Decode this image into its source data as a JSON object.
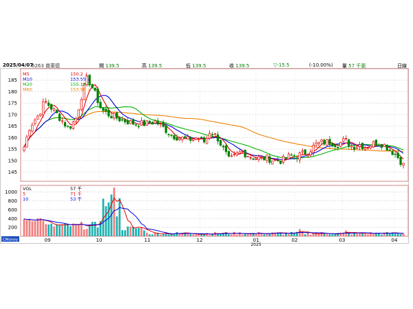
{
  "header": {
    "date": "2025/04/07",
    "code": "6263 普萊德",
    "open_label": "開",
    "open_value": "139.5",
    "high_label": "高",
    "high_value": "139.5",
    "low_label": "低",
    "low_value": "139.5",
    "close_label": "收",
    "close_value": "139.5",
    "change": "▽-15.5",
    "change_pct": "(-10.00%)",
    "volume_label": "量",
    "volume_value": "57 千張",
    "period": "日線"
  },
  "colors": {
    "up": "#e00000",
    "down": "#008000",
    "ma5": "#e00000",
    "ma10": "#0000e0",
    "ma20": "#00b000",
    "ma60": "#f08000",
    "volume_up": "#f08080",
    "volume_down": "#20b0b0",
    "frame": "#d08080"
  },
  "legend_price": [
    {
      "name": "M5",
      "value": "150.2 ↓",
      "color": "#e00000"
    },
    {
      "name": "M10",
      "value": "153.55 ↓",
      "color": "#0000e0"
    },
    {
      "name": "M20",
      "value": "155.18 ↓",
      "color": "#00b000"
    },
    {
      "name": "M60",
      "value": "153.96 ↓",
      "color": "#f08000"
    }
  ],
  "legend_volume": [
    {
      "name": "VOL",
      "value": "57 千",
      "color": "#000000"
    },
    {
      "name": "5",
      "value": "71 千",
      "color": "#e00000"
    },
    {
      "name": "10",
      "value": "53 千",
      "color": "#0000e0"
    }
  ],
  "watermark": "CMoney",
  "chart_data": {
    "type": "candlestick",
    "price_yticks": [
      145,
      150,
      155,
      160,
      165,
      170,
      175,
      180,
      185
    ],
    "price_ylim": [
      141,
      190
    ],
    "volume_yticks": [
      200,
      400,
      600,
      800,
      1000
    ],
    "volume_ylim": [
      0,
      1150
    ],
    "xticks": [
      "09",
      "10",
      "11",
      "12",
      "01",
      "02",
      "03",
      "04"
    ],
    "xtick_year": "2025",
    "grid": true
  }
}
